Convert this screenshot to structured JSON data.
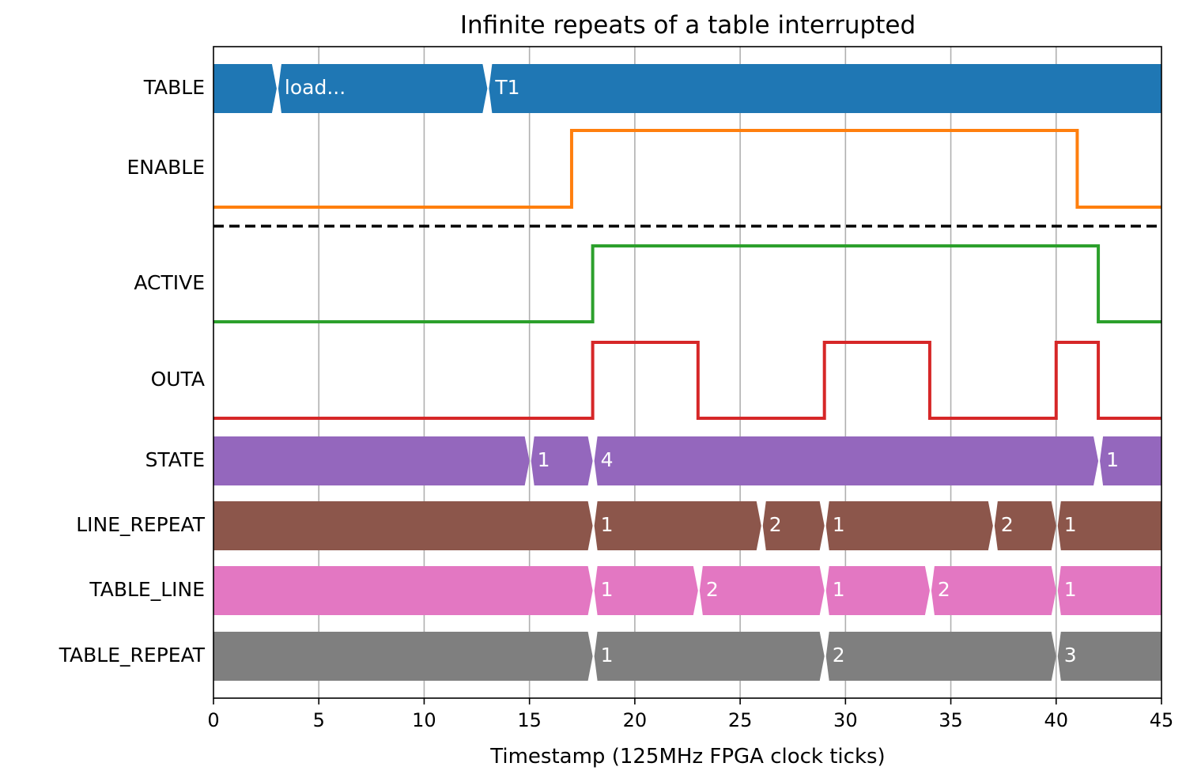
{
  "chart_data": {
    "type": "timing-diagram",
    "title": "Infinite repeats of a table interrupted",
    "xlabel": "Timestamp (125MHz FPGA clock ticks)",
    "xlim": [
      0,
      45
    ],
    "xticks": [
      0,
      5,
      10,
      15,
      20,
      25,
      30,
      35,
      40,
      45
    ],
    "grid": "vertical",
    "separator_after": "ENABLE",
    "signals": [
      {
        "name": "TABLE",
        "kind": "bus",
        "color": "#1f77b4",
        "segments": [
          {
            "start": 0,
            "label": ""
          },
          {
            "start": 3,
            "label": "load..."
          },
          {
            "start": 13,
            "label": "T1"
          }
        ]
      },
      {
        "name": "ENABLE",
        "kind": "bit",
        "color": "#ff7f0e",
        "transitions": [
          [
            0,
            0
          ],
          [
            17,
            1
          ],
          [
            41,
            0
          ]
        ]
      },
      {
        "name": "ACTIVE",
        "kind": "bit",
        "color": "#2ca02c",
        "transitions": [
          [
            0,
            0
          ],
          [
            18,
            1
          ],
          [
            42,
            0
          ]
        ]
      },
      {
        "name": "OUTA",
        "kind": "bit",
        "color": "#d62728",
        "transitions": [
          [
            0,
            0
          ],
          [
            18,
            1
          ],
          [
            23,
            0
          ],
          [
            29,
            1
          ],
          [
            34,
            0
          ],
          [
            40,
            1
          ],
          [
            42,
            0
          ]
        ]
      },
      {
        "name": "STATE",
        "kind": "bus",
        "color": "#9467bd",
        "segments": [
          {
            "start": 0,
            "label": ""
          },
          {
            "start": 15,
            "label": "1"
          },
          {
            "start": 18,
            "label": "4"
          },
          {
            "start": 42,
            "label": "1"
          }
        ]
      },
      {
        "name": "LINE_REPEAT",
        "kind": "bus",
        "color": "#8c564b",
        "segments": [
          {
            "start": 0,
            "label": ""
          },
          {
            "start": 18,
            "label": "1"
          },
          {
            "start": 26,
            "label": "2"
          },
          {
            "start": 29,
            "label": "1"
          },
          {
            "start": 37,
            "label": "2"
          },
          {
            "start": 40,
            "label": "1"
          }
        ]
      },
      {
        "name": "TABLE_LINE",
        "kind": "bus",
        "color": "#e377c2",
        "segments": [
          {
            "start": 0,
            "label": ""
          },
          {
            "start": 18,
            "label": "1"
          },
          {
            "start": 23,
            "label": "2"
          },
          {
            "start": 29,
            "label": "1"
          },
          {
            "start": 34,
            "label": "2"
          },
          {
            "start": 40,
            "label": "1"
          }
        ]
      },
      {
        "name": "TABLE_REPEAT",
        "kind": "bus",
        "color": "#7f7f7f",
        "segments": [
          {
            "start": 0,
            "label": ""
          },
          {
            "start": 18,
            "label": "1"
          },
          {
            "start": 29,
            "label": "2"
          },
          {
            "start": 40,
            "label": "3"
          }
        ]
      }
    ]
  }
}
